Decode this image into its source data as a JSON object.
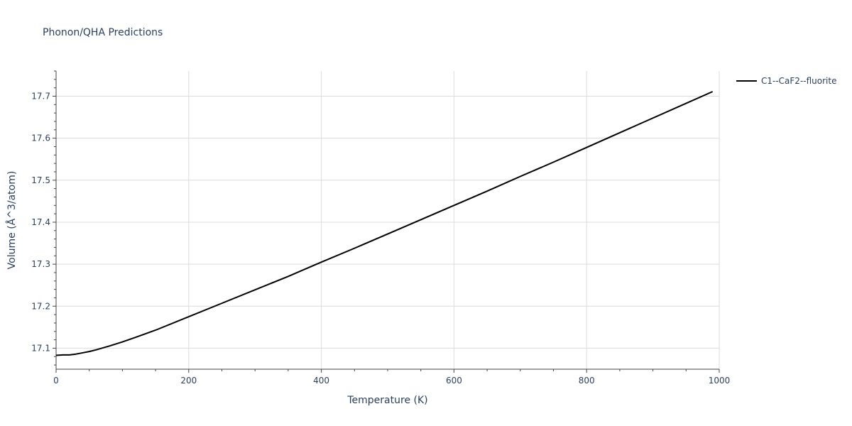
{
  "chart_data": {
    "type": "line",
    "title": "Phonon/QHA Predictions",
    "xlabel": "Temperature (K)",
    "ylabel": "Volume (Å^3/atom)",
    "xlim": [
      0,
      1000
    ],
    "ylim": [
      17.05,
      17.76
    ],
    "x_ticks": [
      0,
      200,
      400,
      600,
      800,
      1000
    ],
    "y_ticks": [
      17.1,
      17.2,
      17.3,
      17.4,
      17.5,
      17.6,
      17.7
    ],
    "x_tick_labels": [
      "0",
      "200",
      "400",
      "600",
      "800",
      "1000"
    ],
    "y_tick_labels": [
      "17.1",
      "17.2",
      "17.3",
      "17.4",
      "17.5",
      "17.6",
      "17.7"
    ],
    "grid": true,
    "legend": "right",
    "series": [
      {
        "name": "C1--CaF2--fluorite",
        "color": "#000000",
        "x": [
          0,
          10,
          20,
          30,
          40,
          50,
          60,
          80,
          100,
          120,
          150,
          200,
          250,
          300,
          350,
          400,
          450,
          500,
          550,
          600,
          650,
          700,
          750,
          800,
          850,
          900,
          950,
          990
        ],
        "y": [
          17.083,
          17.084,
          17.084,
          17.086,
          17.089,
          17.092,
          17.096,
          17.105,
          17.115,
          17.126,
          17.143,
          17.175,
          17.207,
          17.239,
          17.271,
          17.305,
          17.338,
          17.372,
          17.406,
          17.44,
          17.474,
          17.509,
          17.543,
          17.578,
          17.613,
          17.648,
          17.683,
          17.711
        ]
      }
    ]
  }
}
